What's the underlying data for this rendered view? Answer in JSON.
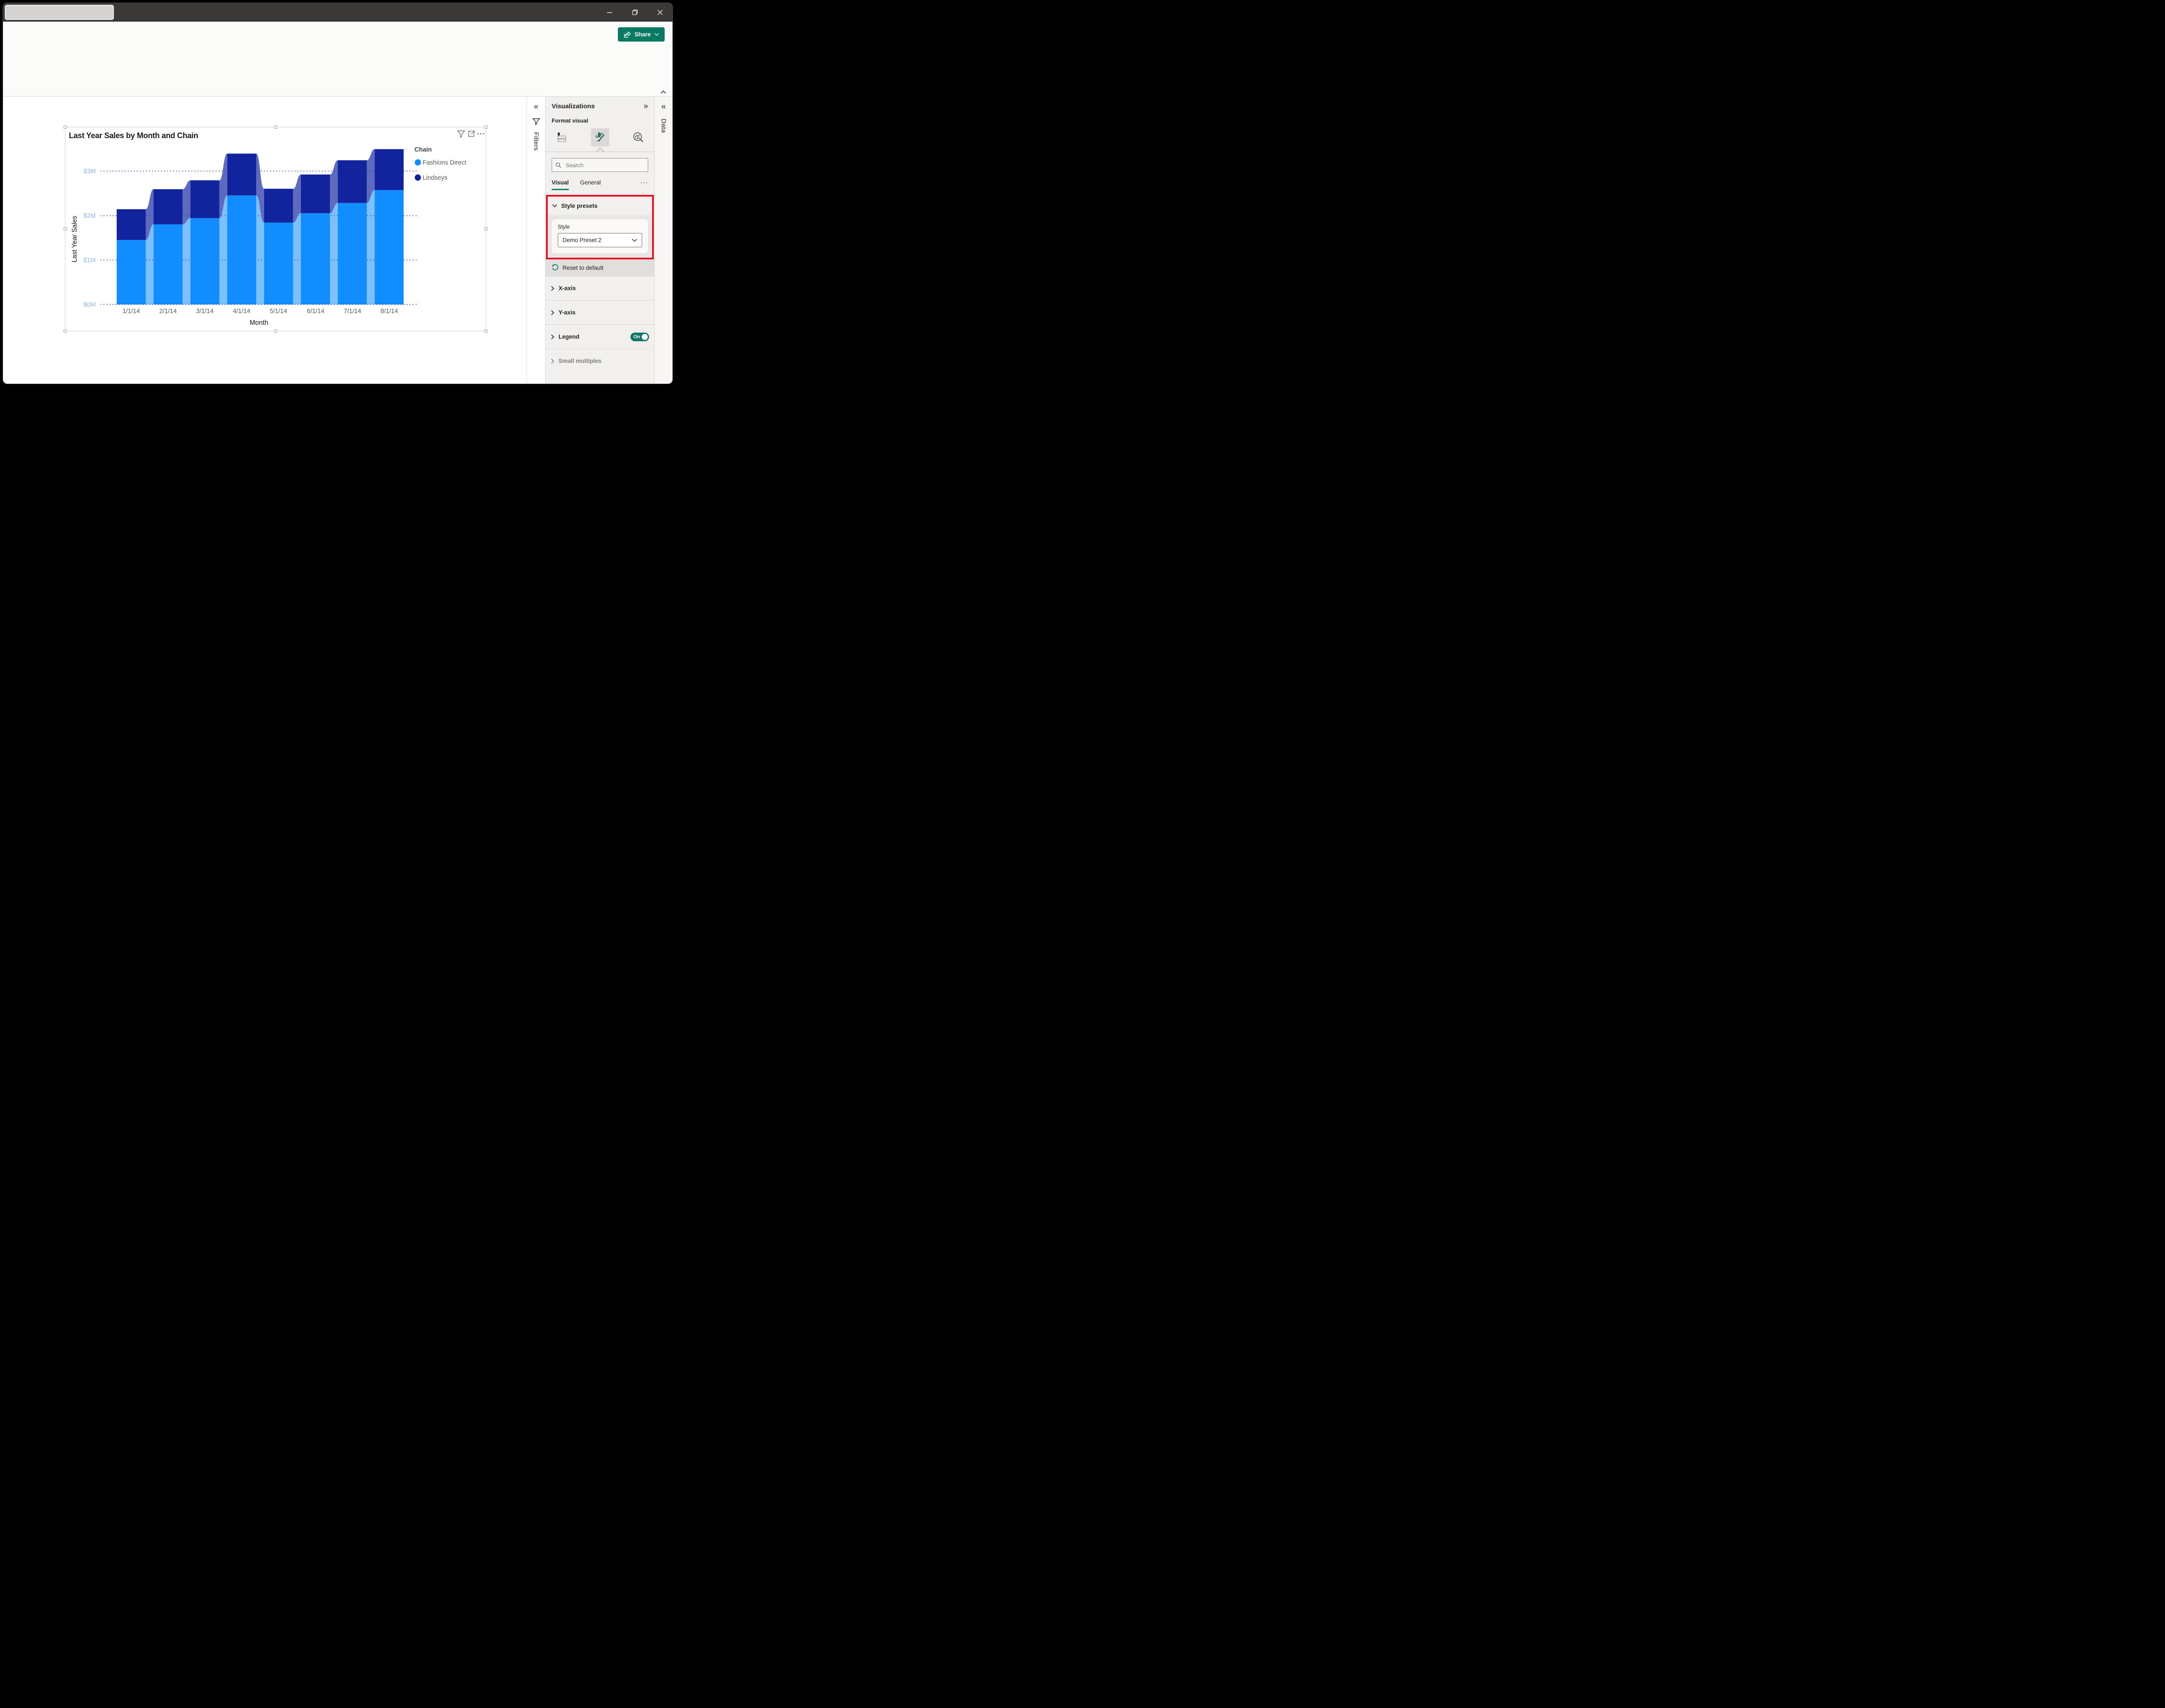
{
  "colors": {
    "accent_teal": "#117865",
    "share_button": "#0B7A64",
    "annotation_red": "#E8101E",
    "gridline_blue": "#2B3BD0",
    "y_tick_blue": "#8FB9F0"
  },
  "ribbon": {
    "share_label": "Share"
  },
  "filters_pane": {
    "title": "Filters"
  },
  "data_pane": {
    "title": "Data"
  },
  "viz_pane": {
    "title": "Visualizations",
    "subtitle": "Format visual",
    "search_placeholder": "Search",
    "tabs": [
      {
        "label": "Visual",
        "selected": true
      },
      {
        "label": "General",
        "selected": false
      }
    ],
    "overflow_label": "···",
    "style_presets": {
      "header": "Style presets",
      "style_label": "Style",
      "style_value": "Demo Preset 2"
    },
    "reset_label": "Reset to default",
    "sections": [
      {
        "label": "X-axis"
      },
      {
        "label": "Y-axis"
      },
      {
        "label": "Legend",
        "toggle": "On"
      },
      {
        "label": "Small multiples"
      }
    ]
  },
  "chart_data": {
    "type": "bar",
    "variant": "stacked ribbon column (Power BI ribbon transitions between columns)",
    "title": "Last Year Sales by Month and Chain",
    "categories": [
      "1/1/14",
      "2/1/14",
      "3/1/14",
      "4/1/14",
      "5/1/14",
      "6/1/14",
      "7/1/14",
      "8/1/14"
    ],
    "series": [
      {
        "name": "Fashions Direct",
        "color": "#118DFF",
        "values": [
          1.45,
          1.8,
          1.94,
          2.45,
          1.84,
          2.05,
          2.28,
          2.57
        ]
      },
      {
        "name": "Lindseys",
        "color": "#12239E",
        "values": [
          0.69,
          0.79,
          0.85,
          0.94,
          0.76,
          0.87,
          0.96,
          0.92
        ]
      }
    ],
    "stacked": true,
    "unit": "USD millions (values estimated from gridlines)",
    "xlabel": "Month",
    "ylabel": "Last Year Sales",
    "ylim": [
      0,
      3.5
    ],
    "ytick_labels": [
      "$0M",
      "$1M",
      "$2M",
      "$3M"
    ],
    "legend_title": "Chain",
    "legend_position": "top-right",
    "grid": "horizontal dotted blue"
  }
}
